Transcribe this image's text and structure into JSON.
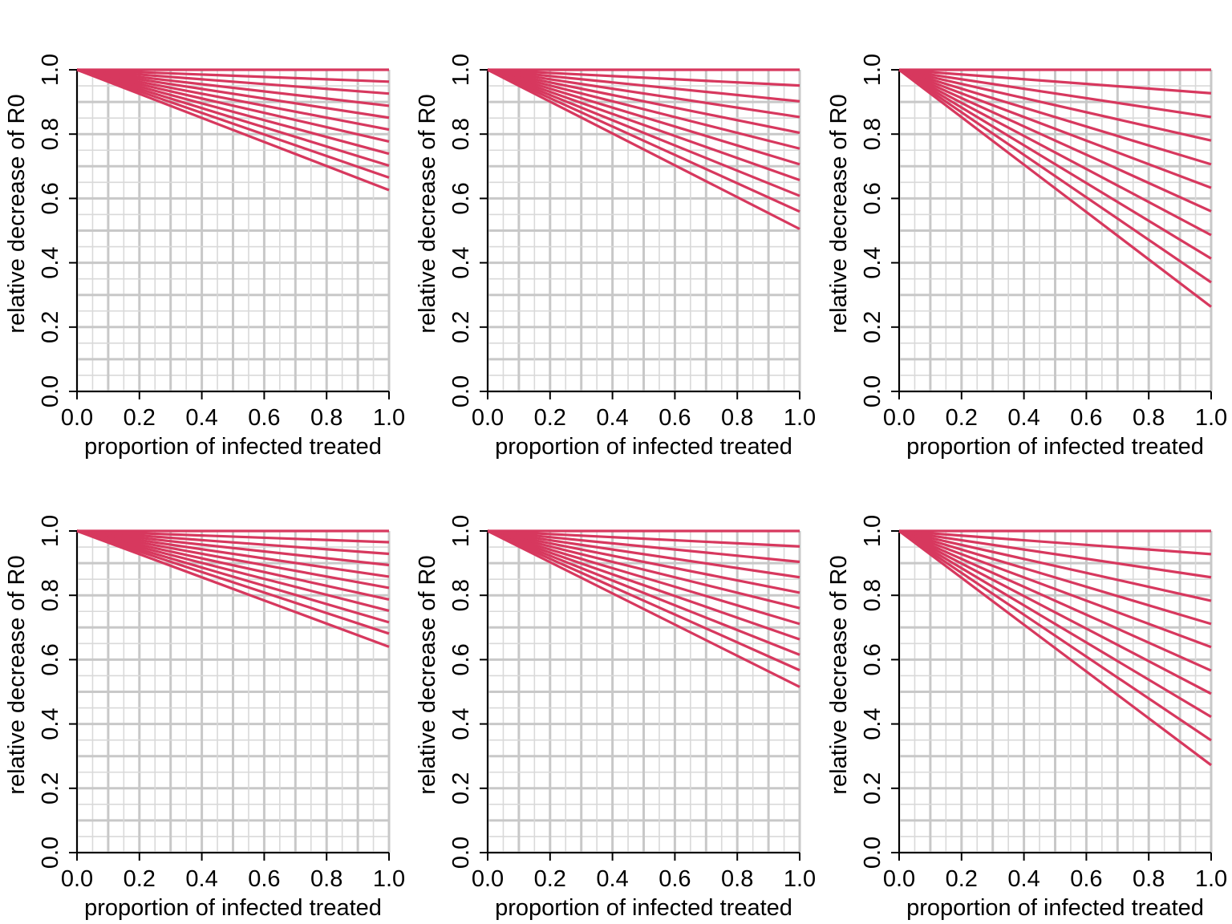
{
  "colors": {
    "line": "#D7385E",
    "grid_major": "#C8C8C8",
    "grid_minor": "#D9D9D9",
    "axis": "#000000",
    "background": "#FFFFFF"
  },
  "chart_data": [
    {
      "type": "line",
      "xlabel": "proportion of infected treated",
      "ylabel": "relative decrease of R0",
      "xlim": [
        0,
        1
      ],
      "ylim": [
        0,
        1
      ],
      "x_ticks": [
        "0.0",
        "0.2",
        "0.4",
        "0.6",
        "0.8",
        "1.0"
      ],
      "y_ticks": [
        "0.0",
        "0.2",
        "0.4",
        "0.6",
        "0.8",
        "1.0"
      ],
      "grid": true,
      "x": [
        0,
        1
      ],
      "series_end_values": [
        1.0,
        0.963,
        0.926,
        0.888,
        0.851,
        0.814,
        0.777,
        0.739,
        0.702,
        0.665,
        0.626
      ]
    },
    {
      "type": "line",
      "xlabel": "proportion of infected treated",
      "ylabel": "relative decrease of R0",
      "xlim": [
        0,
        1
      ],
      "ylim": [
        0,
        1
      ],
      "x_ticks": [
        "0.0",
        "0.2",
        "0.4",
        "0.6",
        "0.8",
        "1.0"
      ],
      "y_ticks": [
        "0.0",
        "0.2",
        "0.4",
        "0.6",
        "0.8",
        "1.0"
      ],
      "grid": true,
      "x": [
        0,
        1
      ],
      "series_end_values": [
        1.0,
        0.951,
        0.902,
        0.853,
        0.804,
        0.755,
        0.706,
        0.657,
        0.608,
        0.559,
        0.505
      ]
    },
    {
      "type": "line",
      "xlabel": "proportion of infected treated",
      "ylabel": "relative decrease of R0",
      "xlim": [
        0,
        1
      ],
      "ylim": [
        0,
        1
      ],
      "x_ticks": [
        "0.0",
        "0.2",
        "0.4",
        "0.6",
        "0.8",
        "1.0"
      ],
      "y_ticks": [
        "0.0",
        "0.2",
        "0.4",
        "0.6",
        "0.8",
        "1.0"
      ],
      "grid": true,
      "x": [
        0,
        1
      ],
      "series_end_values": [
        1.0,
        0.927,
        0.853,
        0.78,
        0.706,
        0.633,
        0.56,
        0.486,
        0.413,
        0.339,
        0.263
      ]
    },
    {
      "type": "line",
      "xlabel": "proportion of infected treated",
      "ylabel": "relative decrease of R0",
      "xlim": [
        0,
        1
      ],
      "ylim": [
        0,
        1
      ],
      "x_ticks": [
        "0.0",
        "0.2",
        "0.4",
        "0.6",
        "0.8",
        "1.0"
      ],
      "y_ticks": [
        "0.0",
        "0.2",
        "0.4",
        "0.6",
        "0.8",
        "1.0"
      ],
      "grid": true,
      "x": [
        0,
        1
      ],
      "series_end_values": [
        1.0,
        0.965,
        0.929,
        0.894,
        0.858,
        0.823,
        0.787,
        0.752,
        0.716,
        0.681,
        0.64
      ]
    },
    {
      "type": "line",
      "xlabel": "proportion of infected treated",
      "ylabel": "relative decrease of R0",
      "xlim": [
        0,
        1
      ],
      "ylim": [
        0,
        1
      ],
      "x_ticks": [
        "0.0",
        "0.2",
        "0.4",
        "0.6",
        "0.8",
        "1.0"
      ],
      "y_ticks": [
        "0.0",
        "0.2",
        "0.4",
        "0.6",
        "0.8",
        "1.0"
      ],
      "grid": true,
      "x": [
        0,
        1
      ],
      "series_end_values": [
        1.0,
        0.952,
        0.904,
        0.856,
        0.808,
        0.76,
        0.711,
        0.663,
        0.615,
        0.567,
        0.515
      ]
    },
    {
      "type": "line",
      "xlabel": "proportion of infected treated",
      "ylabel": "relative decrease of R0",
      "xlim": [
        0,
        1
      ],
      "ylim": [
        0,
        1
      ],
      "x_ticks": [
        "0.0",
        "0.2",
        "0.4",
        "0.6",
        "0.8",
        "1.0"
      ],
      "y_ticks": [
        "0.0",
        "0.2",
        "0.4",
        "0.6",
        "0.8",
        "1.0"
      ],
      "grid": true,
      "x": [
        0,
        1
      ],
      "series_end_values": [
        1.0,
        0.928,
        0.856,
        0.783,
        0.711,
        0.639,
        0.566,
        0.494,
        0.422,
        0.349,
        0.272
      ]
    }
  ]
}
